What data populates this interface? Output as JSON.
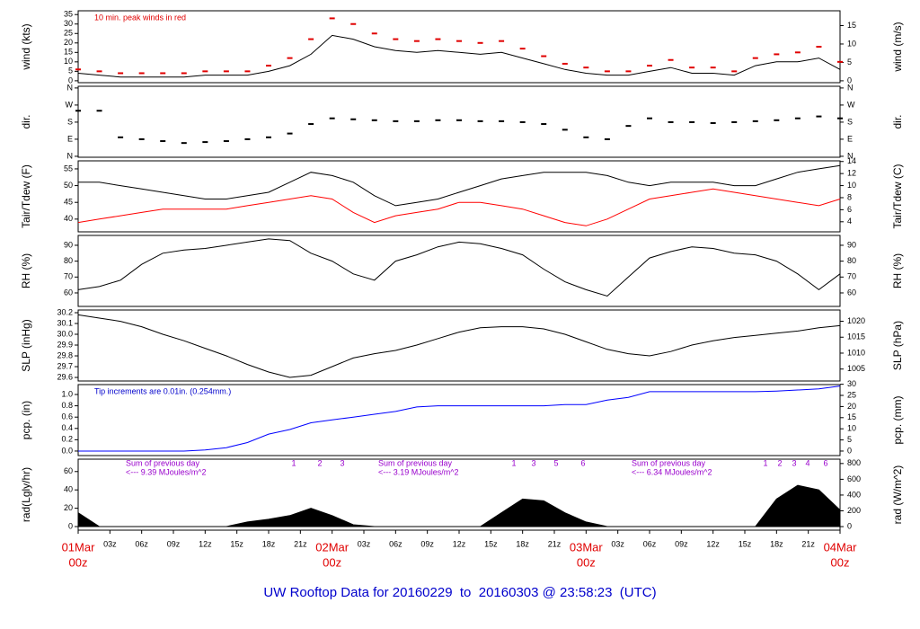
{
  "chart_data": {
    "type": "line",
    "title": "UW Rooftop Data for 20160229  to  20160303 @ 23:58:23  (UTC)",
    "x": [
      0,
      2,
      4,
      6,
      8,
      10,
      12,
      14,
      16,
      18,
      20,
      22,
      24,
      26,
      28,
      30,
      32,
      34,
      36,
      38,
      40,
      42,
      44,
      46,
      48,
      50,
      52,
      54,
      56,
      58,
      60,
      62,
      64,
      66,
      68,
      70,
      72
    ],
    "xlim": [
      0,
      72
    ],
    "xticks": [
      {
        "value": 0,
        "label": "00z",
        "date": "01Mar"
      },
      {
        "value": 3,
        "label": "03z"
      },
      {
        "value": 6,
        "label": "06z"
      },
      {
        "value": 9,
        "label": "09z"
      },
      {
        "value": 12,
        "label": "12z"
      },
      {
        "value": 15,
        "label": "15z"
      },
      {
        "value": 18,
        "label": "18z"
      },
      {
        "value": 21,
        "label": "21z"
      },
      {
        "value": 24,
        "label": "00z",
        "date": "02Mar"
      },
      {
        "value": 27,
        "label": "03z"
      },
      {
        "value": 30,
        "label": "06z"
      },
      {
        "value": 33,
        "label": "09z"
      },
      {
        "value": 36,
        "label": "12z"
      },
      {
        "value": 39,
        "label": "15z"
      },
      {
        "value": 42,
        "label": "18z"
      },
      {
        "value": 45,
        "label": "21z"
      },
      {
        "value": 48,
        "label": "00z",
        "date": "03Mar"
      },
      {
        "value": 51,
        "label": "03z"
      },
      {
        "value": 54,
        "label": "06z"
      },
      {
        "value": 57,
        "label": "09z"
      },
      {
        "value": 60,
        "label": "12z"
      },
      {
        "value": 63,
        "label": "15z"
      },
      {
        "value": 66,
        "label": "18z"
      },
      {
        "value": 69,
        "label": "21z"
      },
      {
        "value": 72,
        "label": "00z",
        "date": "04Mar"
      }
    ],
    "panels": [
      {
        "ylabel": "wind (kts)",
        "y2label": "wind (m/s)",
        "ylim": [
          -1,
          37
        ],
        "yticks": [
          0,
          5,
          10,
          15,
          20,
          25,
          30,
          35
        ],
        "y2lim": [
          -0.51,
          19.03
        ],
        "y2ticks": [
          0,
          5,
          10,
          15
        ],
        "annotation": "10 min. peak winds in red",
        "annotation_color": "#e00000",
        "series": [
          {
            "name": "wind",
            "color": "#000000",
            "style": "line",
            "values": [
              4,
              3,
              2,
              2,
              2,
              2,
              3,
              3,
              3,
              5,
              8,
              14,
              24,
              22,
              18,
              16,
              15,
              16,
              15,
              14,
              15,
              12,
              9,
              6,
              4,
              3,
              3,
              5,
              7,
              4,
              4,
              3,
              8,
              10,
              10,
              12,
              6
            ]
          },
          {
            "name": "peak",
            "color": "#e00000",
            "style": "dash",
            "values": [
              6,
              5,
              4,
              4,
              4,
              4,
              5,
              5,
              5,
              8,
              12,
              22,
              33,
              30,
              25,
              22,
              21,
              22,
              21,
              20,
              21,
              17,
              13,
              9,
              7,
              5,
              5,
              8,
              11,
              7,
              7,
              5,
              12,
              14,
              15,
              18,
              10
            ]
          }
        ]
      },
      {
        "ylabel": "dir.",
        "y2label": "dir.",
        "ylim": [
          -5,
          369
        ],
        "yticks": [
          {
            "value": 0,
            "label": "N"
          },
          {
            "value": 90,
            "label": "E"
          },
          {
            "value": 180,
            "label": "S"
          },
          {
            "value": 270,
            "label": "W"
          },
          {
            "value": 360,
            "label": "N"
          }
        ],
        "y2lim": [
          -5,
          369
        ],
        "y2ticks": [
          {
            "value": 0,
            "label": "N"
          },
          {
            "value": 90,
            "label": "E"
          },
          {
            "value": 180,
            "label": "S"
          },
          {
            "value": 270,
            "label": "W"
          },
          {
            "value": 360,
            "label": "N"
          }
        ],
        "series": [
          {
            "name": "dir",
            "color": "#000000",
            "style": "dash",
            "values": [
              240,
              240,
              100,
              90,
              80,
              70,
              75,
              80,
              90,
              100,
              120,
              170,
              200,
              195,
              190,
              185,
              185,
              190,
              190,
              185,
              185,
              180,
              170,
              140,
              100,
              90,
              160,
              200,
              180,
              180,
              175,
              180,
              185,
              190,
              200,
              210,
              200
            ]
          }
        ]
      },
      {
        "ylabel": "Tair/Tdew (F)",
        "y2label": "Tair/Tdew (C)",
        "ylim": [
          36.2,
          57.4
        ],
        "yticks": [
          40,
          45,
          50,
          55
        ],
        "y2lim": [
          2.33,
          14.11
        ],
        "y2ticks": [
          4,
          6,
          8,
          10,
          12,
          14
        ],
        "series": [
          {
            "name": "Tair",
            "color": "#000000",
            "style": "line",
            "values": [
              51,
              51,
              50,
              49,
              48,
              47,
              46,
              46,
              47,
              48,
              51,
              54,
              53,
              51,
              47,
              44,
              45,
              46,
              48,
              50,
              52,
              53,
              54,
              54,
              54,
              53,
              51,
              50,
              51,
              51,
              51,
              50,
              50,
              52,
              54,
              55,
              56
            ]
          },
          {
            "name": "Tdew",
            "color": "#ff0000",
            "style": "line",
            "values": [
              39,
              40,
              41,
              42,
              43,
              43,
              43,
              43,
              44,
              45,
              46,
              47,
              46,
              42,
              39,
              41,
              42,
              43,
              45,
              45,
              44,
              43,
              41,
              39,
              38,
              40,
              43,
              46,
              47,
              48,
              49,
              48,
              47,
              46,
              45,
              44,
              46
            ]
          }
        ]
      },
      {
        "ylabel": "RH (%)",
        "y2label": "RH (%)",
        "ylim": [
          51.5,
          96.2
        ],
        "yticks": [
          60,
          70,
          80,
          90
        ],
        "y2lim": [
          51.5,
          96.2
        ],
        "y2ticks": [
          60,
          70,
          80,
          90
        ],
        "series": [
          {
            "name": "RH",
            "color": "#000000",
            "style": "line",
            "values": [
              62,
              64,
              68,
              78,
              85,
              87,
              88,
              90,
              92,
              94,
              93,
              85,
              80,
              72,
              68,
              80,
              84,
              89,
              92,
              91,
              88,
              84,
              75,
              67,
              62,
              58,
              70,
              82,
              86,
              89,
              88,
              85,
              84,
              80,
              72,
              62,
              72
            ]
          }
        ]
      },
      {
        "ylabel": "SLP (inHg)",
        "y2label": "SLP (hPa)",
        "ylim": [
          29.567,
          30.225
        ],
        "yticks": [
          {
            "value": 29.6,
            "label": "29.6"
          },
          {
            "value": 29.7,
            "label": "29.7"
          },
          {
            "value": 29.8,
            "label": "29.8"
          },
          {
            "value": 29.9,
            "label": "29.9"
          },
          {
            "value": 30.0,
            "label": "30.0"
          },
          {
            "value": 30.1,
            "label": "30.1"
          },
          {
            "value": 30.2,
            "label": "30.2"
          }
        ],
        "y2lim": [
          1001.25,
          1023.53
        ],
        "y2ticks": [
          1005,
          1010,
          1015,
          1020
        ],
        "series": [
          {
            "name": "SLP",
            "color": "#000000",
            "style": "line",
            "values": [
              30.18,
              30.15,
              30.12,
              30.07,
              30.0,
              29.94,
              29.87,
              29.8,
              29.72,
              29.65,
              29.6,
              29.62,
              29.7,
              29.78,
              29.82,
              29.85,
              29.9,
              29.96,
              30.02,
              30.06,
              30.07,
              30.07,
              30.05,
              30.0,
              29.93,
              29.86,
              29.82,
              29.8,
              29.84,
              29.9,
              29.94,
              29.97,
              29.99,
              30.01,
              30.03,
              30.06,
              30.08
            ]
          }
        ]
      },
      {
        "ylabel": "pcp. (in)",
        "y2label": "pcp. (mm)",
        "ylim": [
          -0.08,
          1.175
        ],
        "yticks": [
          {
            "value": 0,
            "label": "0.0"
          },
          0.2,
          0.4,
          0.6,
          0.8,
          {
            "value": 1,
            "label": "1.0"
          }
        ],
        "y2lim": [
          -2.03,
          29.85
        ],
        "y2ticks": [
          0,
          5,
          10,
          15,
          20,
          25,
          30
        ],
        "annotation": "Tip increments are 0.01in. (0.254mm.)",
        "annotation_color": "#0000cc",
        "series": [
          {
            "name": "pcp",
            "color": "#0000ff",
            "style": "line",
            "values": [
              0,
              0,
              0,
              0,
              0,
              0,
              0.02,
              0.06,
              0.15,
              0.3,
              0.38,
              0.5,
              0.55,
              0.6,
              0.65,
              0.7,
              0.78,
              0.8,
              0.8,
              0.8,
              0.8,
              0.8,
              0.8,
              0.82,
              0.82,
              0.9,
              0.95,
              1.05,
              1.05,
              1.05,
              1.05,
              1.05,
              1.05,
              1.06,
              1.08,
              1.1,
              1.15
            ]
          }
        ]
      },
      {
        "ylabel": "rad(Lgly/hr)",
        "y2label": "rad (W/m^2)",
        "ylim": [
          -3.9,
          73.5
        ],
        "yticks": [
          0,
          20,
          40,
          60
        ],
        "y2lim": [
          -45,
          855
        ],
        "y2ticks": [
          0,
          200,
          400,
          600,
          800
        ],
        "sums": [
          {
            "heading": "Sum of previous day",
            "text": "<--- 9.39 MJoules/m^2"
          },
          {
            "heading": "Sum of previous day",
            "text": "<--- 3.19 MJoules/m^2"
          },
          {
            "heading": "Sum of previous day",
            "text": "<--- 6.34 MJoules/m^2"
          }
        ],
        "markers": [
          [
            "1",
            "2",
            "3"
          ],
          [
            "1",
            "3",
            "5",
            "6"
          ],
          [
            "1",
            "2",
            "3",
            "4",
            "6"
          ]
        ],
        "annotation_color": "#9900cc",
        "series": [
          {
            "name": "rad",
            "color": "#000000",
            "style": "area",
            "values": [
              15,
              0,
              0,
              0,
              0,
              0,
              0,
              0,
              5,
              8,
              12,
              20,
              12,
              2,
              0,
              0,
              0,
              0,
              0,
              0,
              15,
              30,
              28,
              15,
              5,
              0,
              0,
              0,
              0,
              0,
              0,
              0,
              0,
              30,
              45,
              40,
              18
            ]
          }
        ]
      }
    ]
  }
}
